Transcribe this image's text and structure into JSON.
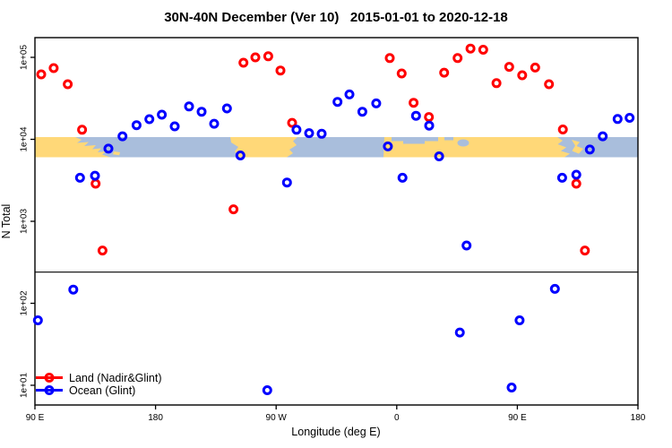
{
  "chart_data": {
    "type": "scatter",
    "title": "30N-40N December (Ver 10)   2015-01-01 to 2020-12-18",
    "xlabel": "Longitude (deg E)",
    "ylabel": "N Total",
    "x_axis": {
      "range_deg_e": [
        90,
        540
      ],
      "ticks": [
        {
          "label": "90 E",
          "lon": 90
        },
        {
          "label": "180",
          "lon": 180
        },
        {
          "label": "90 W",
          "lon": 270
        },
        {
          "label": "0",
          "lon": 360
        },
        {
          "label": "90 E",
          "lon": 450
        },
        {
          "label": "180",
          "lon": 540
        }
      ]
    },
    "y_axis": {
      "scale": "log",
      "ticks": [
        {
          "label": "1e+05",
          "value": 100000
        },
        {
          "label": "1e+04",
          "value": 10000
        },
        {
          "label": "1e+03",
          "value": 1000
        },
        {
          "label": "1e+02",
          "value": 100
        },
        {
          "label": "1e+01",
          "value": 10
        }
      ]
    },
    "threshold_line_value": 240,
    "series": [
      {
        "name": "Land (Nadir&Glint)",
        "color": "#FF0000",
        "points": [
          {
            "lon": 94.7,
            "n": 62000
          },
          {
            "lon": 104.0,
            "n": 74000
          },
          {
            "lon": 114.5,
            "n": 47000
          },
          {
            "lon": 125.2,
            "n": 13100
          },
          {
            "lon": 135.3,
            "n": 2880
          },
          {
            "lon": 140.4,
            "n": 440
          },
          {
            "lon": 238.2,
            "n": 1400
          },
          {
            "lon": 245.6,
            "n": 86000
          },
          {
            "lon": 254.5,
            "n": 100000
          },
          {
            "lon": 264.1,
            "n": 103000
          },
          {
            "lon": 273.2,
            "n": 69000
          },
          {
            "lon": 281.9,
            "n": 15900
          },
          {
            "lon": 354.8,
            "n": 98000
          },
          {
            "lon": 363.7,
            "n": 63500
          },
          {
            "lon": 372.6,
            "n": 27900
          },
          {
            "lon": 384.0,
            "n": 18700
          },
          {
            "lon": 395.4,
            "n": 65000
          },
          {
            "lon": 405.4,
            "n": 98000
          },
          {
            "lon": 415.0,
            "n": 128000
          },
          {
            "lon": 424.5,
            "n": 124000
          },
          {
            "lon": 434.4,
            "n": 48500
          },
          {
            "lon": 443.9,
            "n": 76500
          },
          {
            "lon": 453.6,
            "n": 60500
          },
          {
            "lon": 463.3,
            "n": 75000
          },
          {
            "lon": 473.6,
            "n": 47000
          },
          {
            "lon": 484.0,
            "n": 13200
          },
          {
            "lon": 494.0,
            "n": 2880
          },
          {
            "lon": 500.4,
            "n": 440
          }
        ]
      },
      {
        "name": "Ocean (Glint)",
        "color": "#0000FF",
        "points": [
          {
            "lon": 92.2,
            "n": 62
          },
          {
            "lon": 118.6,
            "n": 147
          },
          {
            "lon": 123.6,
            "n": 3400
          },
          {
            "lon": 134.8,
            "n": 3600
          },
          {
            "lon": 144.8,
            "n": 7700
          },
          {
            "lon": 155.3,
            "n": 10900
          },
          {
            "lon": 165.8,
            "n": 14900
          },
          {
            "lon": 175.4,
            "n": 17600
          },
          {
            "lon": 184.7,
            "n": 20000
          },
          {
            "lon": 194.3,
            "n": 14400
          },
          {
            "lon": 205.0,
            "n": 25200
          },
          {
            "lon": 214.4,
            "n": 21700
          },
          {
            "lon": 223.7,
            "n": 15500
          },
          {
            "lon": 233.3,
            "n": 23800
          },
          {
            "lon": 243.3,
            "n": 6350
          },
          {
            "lon": 263.4,
            "n": 8.7
          },
          {
            "lon": 278.1,
            "n": 2970
          },
          {
            "lon": 285.2,
            "n": 13100
          },
          {
            "lon": 294.6,
            "n": 11900
          },
          {
            "lon": 304.0,
            "n": 11700
          },
          {
            "lon": 315.8,
            "n": 28600
          },
          {
            "lon": 324.7,
            "n": 35300
          },
          {
            "lon": 334.3,
            "n": 21700
          },
          {
            "lon": 344.7,
            "n": 27400
          },
          {
            "lon": 353.4,
            "n": 8200
          },
          {
            "lon": 364.3,
            "n": 3400
          },
          {
            "lon": 374.4,
            "n": 19400
          },
          {
            "lon": 384.2,
            "n": 14700
          },
          {
            "lon": 391.6,
            "n": 6200
          },
          {
            "lon": 407.1,
            "n": 44
          },
          {
            "lon": 412.1,
            "n": 507
          },
          {
            "lon": 445.7,
            "n": 9.4
          },
          {
            "lon": 451.7,
            "n": 62
          },
          {
            "lon": 478.0,
            "n": 150
          },
          {
            "lon": 483.4,
            "n": 3400
          },
          {
            "lon": 494.0,
            "n": 3700
          },
          {
            "lon": 504.1,
            "n": 7500
          },
          {
            "lon": 513.7,
            "n": 10900
          },
          {
            "lon": 524.8,
            "n": 17700
          },
          {
            "lon": 533.8,
            "n": 18300
          }
        ]
      }
    ]
  },
  "legend": {
    "items": [
      {
        "label": "Land (Nadir&Glint)",
        "color": "#FF0000"
      },
      {
        "label": "Ocean (Glint)",
        "color": "#0000FF"
      }
    ]
  },
  "colors": {
    "land_point": "#FF0000",
    "ocean_point": "#0000FF",
    "land_strip": "#FFD878",
    "ocean_strip": "#A9BEDC",
    "axis": "#000000"
  }
}
